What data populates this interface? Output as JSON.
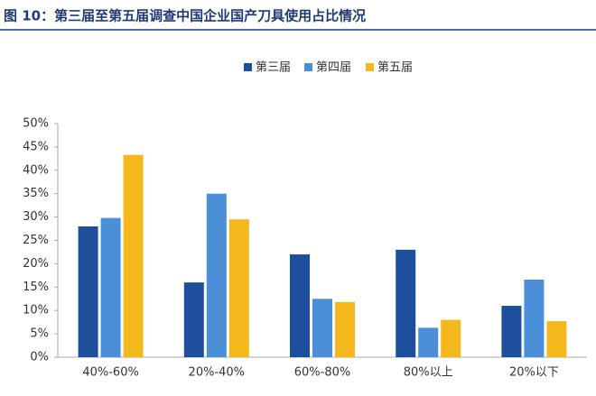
{
  "chart_data": {
    "type": "bar",
    "title": "图 10：第三届至第五届调查中国企业国产刀具使用占比情况",
    "categories": [
      "40%-60%",
      "20%-40%",
      "60%-80%",
      "80%以上",
      "20%以下"
    ],
    "series": [
      {
        "name": "第三届",
        "color": "#1d4f9c",
        "values": [
          28,
          16,
          22,
          23,
          11
        ]
      },
      {
        "name": "第四届",
        "color": "#4a8fd8",
        "values": [
          29.8,
          35,
          12.5,
          6.3,
          16.6
        ]
      },
      {
        "name": "第五届",
        "color": "#f5b81c",
        "values": [
          43.3,
          29.5,
          11.8,
          8,
          7.7
        ]
      }
    ],
    "ylim": [
      0,
      50
    ],
    "yticks": [
      {
        "value": 0,
        "label": "0%"
      },
      {
        "value": 5,
        "label": "5%"
      },
      {
        "value": 10,
        "label": "10%"
      },
      {
        "value": 15,
        "label": "15%"
      },
      {
        "value": 20,
        "label": "20%"
      },
      {
        "value": 25,
        "label": "25%"
      },
      {
        "value": 30,
        "label": "30%"
      },
      {
        "value": 35,
        "label": "35%"
      },
      {
        "value": 40,
        "label": "40%"
      },
      {
        "value": 45,
        "label": "45%"
      },
      {
        "value": 50,
        "label": "50%"
      }
    ],
    "grid": false,
    "legend": "top"
  }
}
